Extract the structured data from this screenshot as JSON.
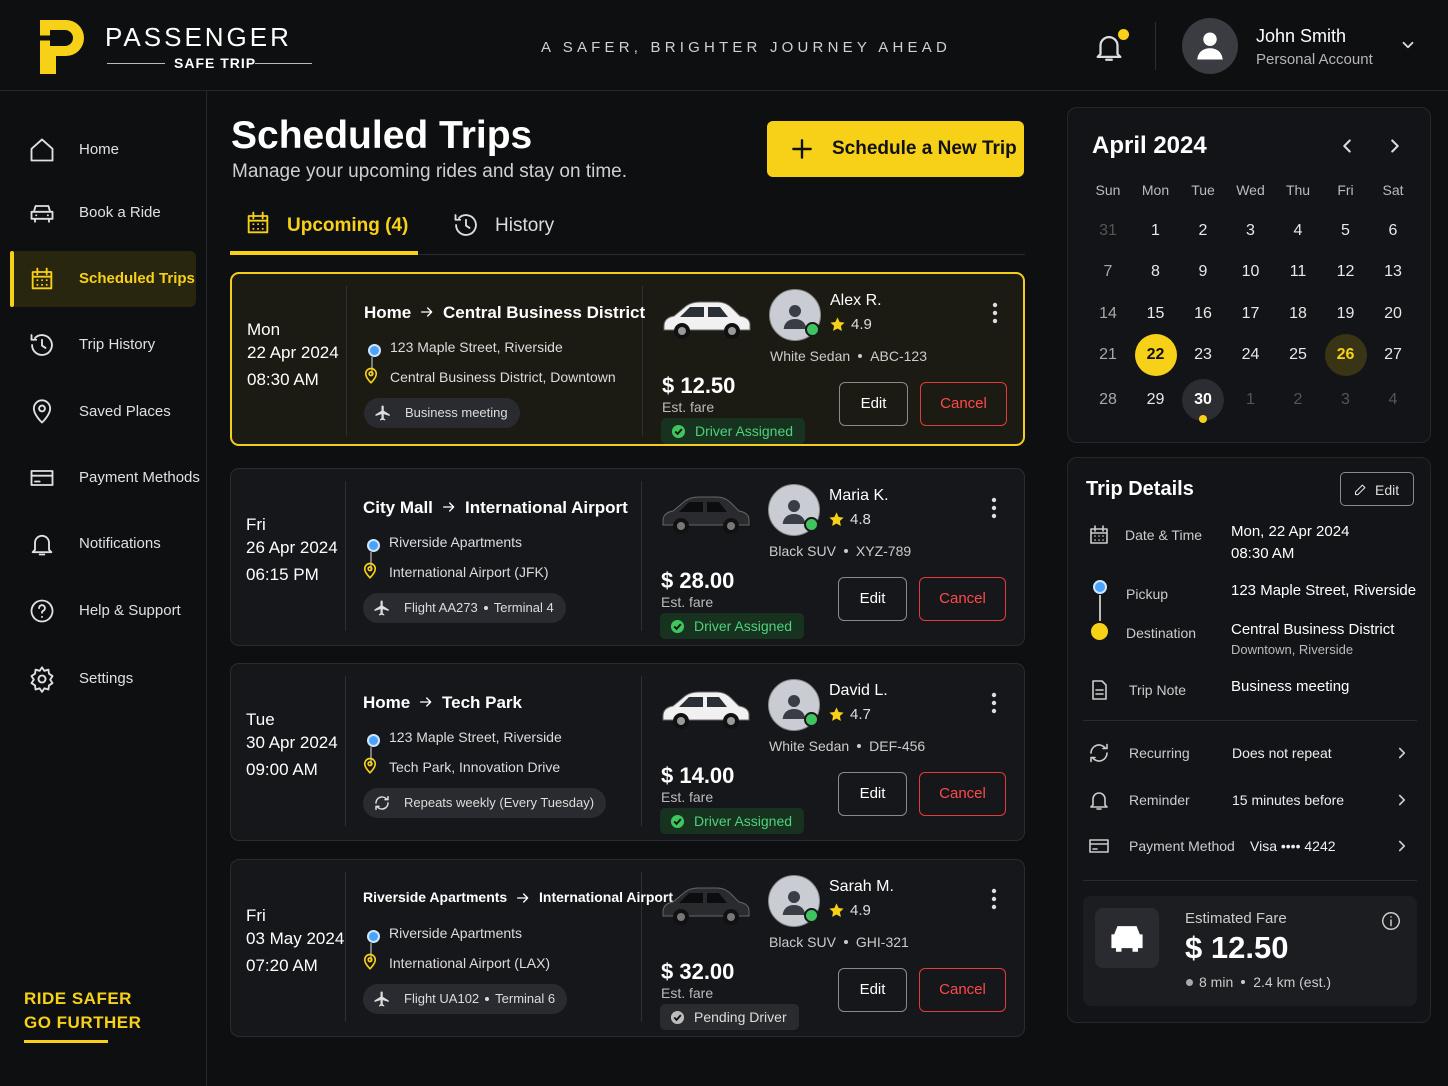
{
  "header": {
    "brand": "PASSENGER",
    "brand_sub": "SAFE TRIP",
    "tagline": "A SAFER, BRIGHTER JOURNEY AHEAD",
    "user_name": "John Smith",
    "user_role": "Personal Account"
  },
  "sidebar": {
    "items": [
      {
        "label": "Home",
        "icon": "home"
      },
      {
        "label": "Book a Ride",
        "icon": "car"
      },
      {
        "label": "Scheduled Trips",
        "icon": "calendar"
      },
      {
        "label": "Trip History",
        "icon": "history"
      },
      {
        "label": "Saved Places",
        "icon": "pin"
      },
      {
        "label": "Payment Methods",
        "icon": "card"
      },
      {
        "label": "Notifications",
        "icon": "bell"
      },
      {
        "label": "Help & Support",
        "icon": "help"
      },
      {
        "label": "Settings",
        "icon": "gear"
      }
    ],
    "active": 2,
    "slogan": [
      "RIDE SAFER",
      "GO FURTHER"
    ]
  },
  "page": {
    "title": "Scheduled Trips",
    "subtitle": "Manage your upcoming rides and stay on time.",
    "new_trip_button": "Schedule a New Trip",
    "tabs": [
      "Upcoming (4)",
      "History"
    ]
  },
  "labels": {
    "est_fare": "Est. fare",
    "edit": "Edit",
    "cancel": "Cancel"
  },
  "trips": [
    {
      "day": "Mon",
      "date": "22 Apr 2024",
      "time": "08:30 AM",
      "from": "Home",
      "to": "Central Business District",
      "pickup": "123 Maple Street, Riverside",
      "dropoff": "Central Business District, Downtown",
      "note": "Business meeting",
      "note_icon": "plane",
      "driver": "Alex R.",
      "rating": "4.9",
      "vehicle": "White Sedan",
      "plate": "ABC-123",
      "fare": "$ 12.50",
      "status": "Driver Assigned",
      "status_style": "assigned",
      "selected": true
    },
    {
      "day": "Fri",
      "date": "26 Apr 2024",
      "time": "06:15 PM",
      "from": "City Mall",
      "to": "International Airport",
      "pickup": "Riverside Apartments",
      "dropoff": "International Airport (JFK)",
      "note": [
        "Flight AA273",
        "Terminal 4"
      ],
      "note_icon": "plane",
      "driver": "Maria K.",
      "rating": "4.8",
      "vehicle": "Black SUV",
      "plate": "XYZ-789",
      "fare": "$ 28.00",
      "status": "Driver Assigned",
      "status_style": "assigned",
      "selected": false
    },
    {
      "day": "Tue",
      "date": "30 Apr 2024",
      "time": "09:00 AM",
      "from": "Home",
      "to": "Tech Park",
      "pickup": "123 Maple Street, Riverside",
      "dropoff": "Tech Park, Innovation Drive",
      "note": "Repeats weekly (Every Tuesday)",
      "note_icon": "repeat",
      "driver": "David L.",
      "rating": "4.7",
      "vehicle": "White Sedan",
      "plate": "DEF-456",
      "fare": "$ 14.00",
      "status": "Driver Assigned",
      "status_style": "assigned",
      "selected": false
    },
    {
      "day": "Fri",
      "date": "03 May 2024",
      "time": "07:20 AM",
      "from": "Riverside Apartments",
      "to": "International Airport",
      "pickup": "Riverside Apartments",
      "dropoff": "International Airport (LAX)",
      "note": [
        "Flight UA102",
        "Terminal 6"
      ],
      "note_icon": "plane",
      "driver": "Sarah M.",
      "rating": "4.9",
      "vehicle": "Black SUV",
      "plate": "GHI-321",
      "fare": "$ 32.00",
      "status": "Pending Driver",
      "status_style": "pending",
      "selected": false
    }
  ],
  "calendar": {
    "month": "April 2024",
    "weekdays": [
      "Sun",
      "Mon",
      "Tue",
      "Wed",
      "Thu",
      "Fri",
      "Sat"
    ],
    "days": [
      31,
      1,
      2,
      3,
      4,
      5,
      6,
      7,
      8,
      9,
      10,
      11,
      12,
      13,
      14,
      15,
      16,
      17,
      18,
      19,
      20,
      21,
      22,
      23,
      24,
      25,
      26,
      27,
      28,
      29,
      30,
      1,
      2,
      3,
      4
    ],
    "muted_indices": [
      0,
      31,
      32,
      33,
      34
    ],
    "selected_index": 22,
    "highlight_index": 26,
    "today_index": 30
  },
  "details": {
    "title": "Trip Details",
    "edit": "Edit",
    "rows": [
      {
        "label": "Date & Time",
        "value": "Mon, 22 Apr 2024",
        "sub": "08:30 AM",
        "icon": "calendar"
      },
      {
        "label": "Pickup",
        "value": "123 Maple Street, Riverside",
        "icon": "pickup"
      },
      {
        "label": "Destination",
        "value": "Central Business District",
        "sub": "Downtown, Riverside",
        "icon": "dest"
      },
      {
        "label": "Trip Note",
        "value": "Business meeting",
        "icon": "note"
      }
    ],
    "settings": [
      {
        "label": "Recurring",
        "value": "Does not repeat",
        "icon": "repeat"
      },
      {
        "label": "Reminder",
        "value": "15 minutes before",
        "icon": "bell"
      },
      {
        "label": "Payment Method",
        "value": "Visa •••• 4242",
        "icon": "card"
      }
    ],
    "fare": {
      "label": "Estimated Fare",
      "value": "$ 12.50",
      "duration": "8 min",
      "distance": "2.4 km (est.)"
    }
  }
}
